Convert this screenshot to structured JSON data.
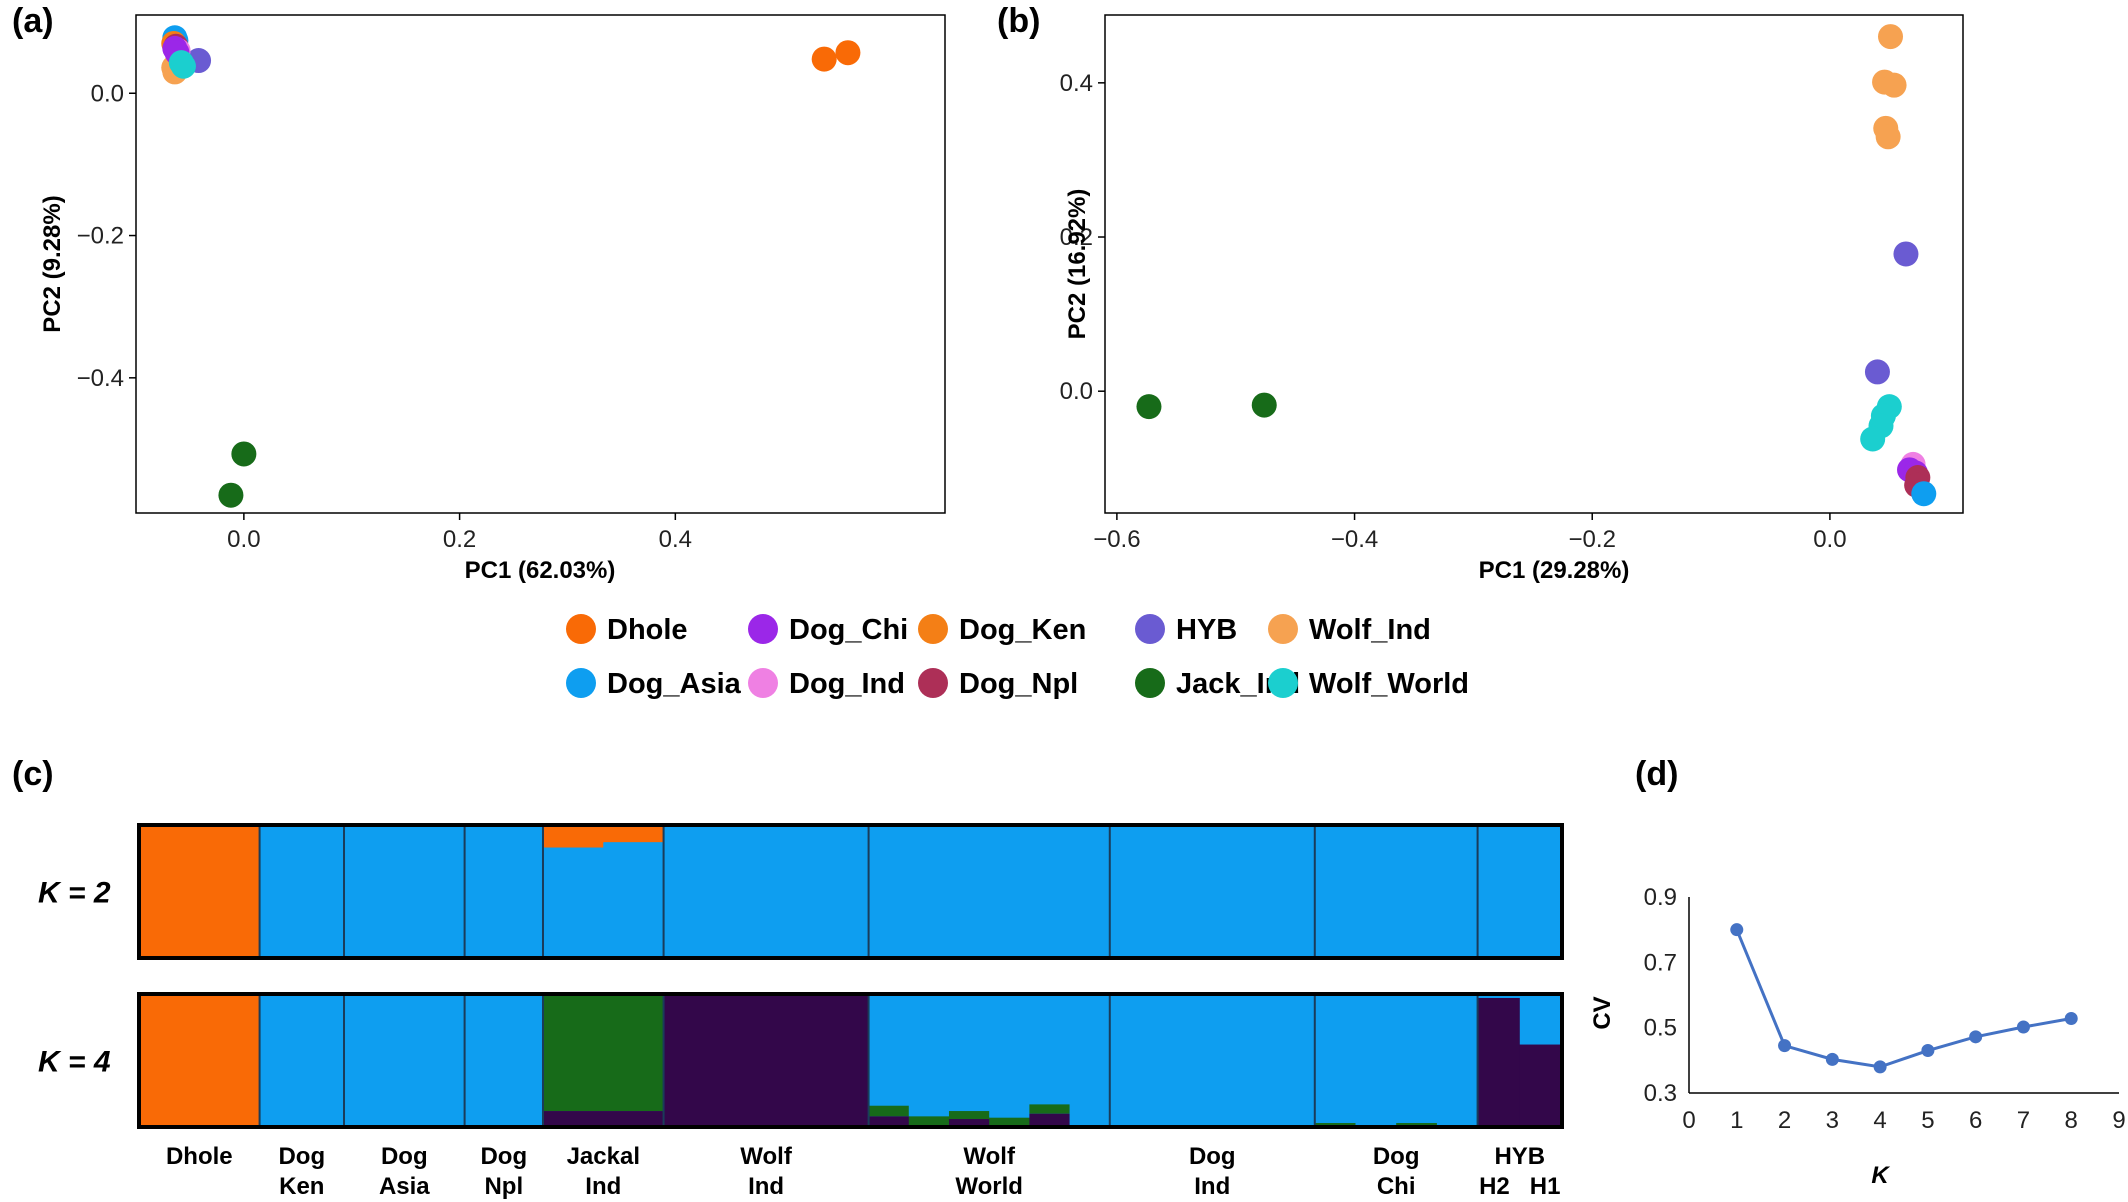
{
  "panels": {
    "a": "(a)",
    "b": "(b)",
    "c": "(c)",
    "d": "(d)"
  },
  "colors": {
    "Dhole": "#f96a06",
    "Dog_Asia": "#0e9ef0",
    "Dog_Chi": "#9b27e8",
    "Dog_Ind": "#ef80e3",
    "Dog_Ken": "#f47f16",
    "Dog_Npl": "#ad2f57",
    "HYB": "#6a5bd2",
    "Jack_Ind": "#176b19",
    "Wolf_Ind": "#f6a251",
    "Wolf_World": "#1bcfcf"
  },
  "legend": {
    "row1": [
      "Dhole",
      "Dog_Chi",
      "Dog_Ken",
      "HYB",
      "Wolf_Ind"
    ],
    "row2": [
      "Dog_Asia",
      "Dog_Ind",
      "Dog_Npl",
      "Jack_Ind",
      "Wolf_World"
    ]
  },
  "chart_data": [
    {
      "id": "a",
      "type": "scatter",
      "xlabel": "PC1 (62.03%)",
      "ylabel": "PC2 (9.28%)",
      "xlim": [
        -0.1,
        0.65
      ],
      "ylim": [
        -0.59,
        0.11
      ],
      "xticks": [
        0.0,
        0.2,
        0.4
      ],
      "xtick_labels": [
        "0.0",
        "0.2",
        "0.4"
      ],
      "yticks": [
        0.0,
        -0.2,
        -0.4
      ],
      "ytick_labels": [
        "0.0",
        "−0.2",
        "−0.4"
      ],
      "points": [
        {
          "g": "Dhole",
          "x": 0.538,
          "y": 0.048
        },
        {
          "g": "Dhole",
          "x": 0.56,
          "y": 0.057
        },
        {
          "g": "Jack_Ind",
          "x": 0.0,
          "y": -0.507
        },
        {
          "g": "Jack_Ind",
          "x": -0.012,
          "y": -0.565
        },
        {
          "g": "Dog_Asia",
          "x": -0.064,
          "y": 0.078
        },
        {
          "g": "Dog_Asia",
          "x": -0.063,
          "y": 0.074
        },
        {
          "g": "Dog_Ken",
          "x": -0.065,
          "y": 0.07
        },
        {
          "g": "Wolf_Ind",
          "x": -0.064,
          "y": 0.03
        },
        {
          "g": "Wolf_Ind",
          "x": -0.065,
          "y": 0.036
        },
        {
          "g": "HYB",
          "x": -0.042,
          "y": 0.046
        },
        {
          "g": "Dog_Npl",
          "x": -0.063,
          "y": 0.066
        },
        {
          "g": "Dog_Ind",
          "x": -0.061,
          "y": 0.06
        },
        {
          "g": "Dog_Chi",
          "x": -0.064,
          "y": 0.063
        },
        {
          "g": "Dog_Chi",
          "x": -0.062,
          "y": 0.057
        },
        {
          "g": "Wolf_World",
          "x": -0.058,
          "y": 0.043
        },
        {
          "g": "Wolf_World",
          "x": -0.056,
          "y": 0.038
        }
      ]
    },
    {
      "id": "b",
      "type": "scatter",
      "xlabel": "PC1 (29.28%)",
      "ylabel": "PC2 (16.92%)",
      "xlim": [
        -0.61,
        0.112
      ],
      "ylim": [
        -0.158,
        0.488
      ],
      "xticks": [
        -0.6,
        -0.4,
        -0.2,
        0.0
      ],
      "xtick_labels": [
        "−0.6",
        "−0.4",
        "−0.2",
        "0.0"
      ],
      "yticks": [
        0.4,
        0.2,
        0.0
      ],
      "ytick_labels": [
        "0.4",
        "0.2",
        "0.0"
      ],
      "points": [
        {
          "g": "Jack_Ind",
          "x": -0.573,
          "y": -0.02
        },
        {
          "g": "Jack_Ind",
          "x": -0.476,
          "y": -0.018
        },
        {
          "g": "Wolf_Ind",
          "x": 0.051,
          "y": 0.46
        },
        {
          "g": "Wolf_Ind",
          "x": 0.046,
          "y": 0.401
        },
        {
          "g": "Wolf_Ind",
          "x": 0.054,
          "y": 0.397
        },
        {
          "g": "Wolf_Ind",
          "x": 0.047,
          "y": 0.341
        },
        {
          "g": "Wolf_Ind",
          "x": 0.049,
          "y": 0.33
        },
        {
          "g": "HYB",
          "x": 0.064,
          "y": 0.178
        },
        {
          "g": "HYB",
          "x": 0.04,
          "y": 0.025
        },
        {
          "g": "Wolf_World",
          "x": 0.05,
          "y": -0.02
        },
        {
          "g": "Wolf_World",
          "x": 0.045,
          "y": -0.032
        },
        {
          "g": "Wolf_World",
          "x": 0.043,
          "y": -0.045
        },
        {
          "g": "Wolf_World",
          "x": 0.036,
          "y": -0.062
        },
        {
          "g": "Dog_Ind",
          "x": 0.07,
          "y": -0.095
        },
        {
          "g": "Dog_Chi",
          "x": 0.067,
          "y": -0.102
        },
        {
          "g": "Dog_Chi",
          "x": 0.072,
          "y": -0.106
        },
        {
          "g": "Dog_Npl",
          "x": 0.074,
          "y": -0.112
        },
        {
          "g": "Dog_Npl",
          "x": 0.073,
          "y": -0.122
        },
        {
          "g": "Dog_Asia",
          "x": 0.079,
          "y": -0.133
        }
      ]
    },
    {
      "id": "c",
      "type": "bar",
      "stacked": true,
      "groups": [
        {
          "name": "Dhole",
          "line1": "Dhole",
          "line2": ""
        },
        {
          "name": "Dog Ken",
          "line1": "Dog",
          "line2": "Ken"
        },
        {
          "name": "Dog Asia",
          "line1": "Dog",
          "line2": "Asia"
        },
        {
          "name": "Dog Npl",
          "line1": "Dog",
          "line2": "Npl"
        },
        {
          "name": "Jackal Ind",
          "line1": "Jackal",
          "line2": "Ind"
        },
        {
          "name": "Wolf Ind",
          "line1": "Wolf",
          "line2": "Ind"
        },
        {
          "name": "Wolf World",
          "line1": "Wolf",
          "line2": "World"
        },
        {
          "name": "Dog Ind",
          "line1": "Dog",
          "line2": "Ind"
        },
        {
          "name": "Dog Chi",
          "line1": "Dog",
          "line2": "Chi"
        },
        {
          "name": "HYB",
          "line1": "HYB",
          "line2": "H2   H1"
        }
      ],
      "group_widths": [
        2,
        1.4,
        2,
        1.3,
        2,
        3.4,
        4,
        3.4,
        2.7,
        1.4
      ],
      "rows": [
        {
          "label": "K = 2",
          "colors": [
            "#f96a06",
            "#0e9ef0"
          ],
          "groups": [
            [
              [
                1.0,
                0.0
              ]
            ],
            [
              [
                0.0,
                1.0
              ]
            ],
            [
              [
                0.0,
                1.0
              ]
            ],
            [
              [
                0.0,
                1.0
              ]
            ],
            [
              [
                0.17,
                0.83
              ],
              [
                0.13,
                0.87
              ]
            ],
            [
              [
                0.0,
                1.0
              ]
            ],
            [
              [
                0.0,
                1.0
              ]
            ],
            [
              [
                0.0,
                1.0
              ]
            ],
            [
              [
                0.0,
                1.0
              ]
            ],
            [
              [
                0.0,
                1.0
              ]
            ]
          ]
        },
        {
          "label": "K = 4",
          "colors": [
            "#f96a06",
            "#0e9ef0",
            "#176b19",
            "#33074a"
          ],
          "groups": [
            [
              [
                1.0,
                0.0,
                0.0,
                0.0
              ]
            ],
            [
              [
                0.0,
                1.0,
                0.0,
                0.0
              ]
            ],
            [
              [
                0.0,
                0.99,
                0.01,
                0.0
              ]
            ],
            [
              [
                0.0,
                1.0,
                0.0,
                0.0
              ]
            ],
            [
              [
                0.0,
                0.0,
                0.88,
                0.12
              ]
            ],
            [
              [
                0.0,
                0.0,
                0.0,
                1.0
              ]
            ],
            [
              [
                0.0,
                0.84,
                0.08,
                0.08
              ],
              [
                0.0,
                0.92,
                0.08,
                0.0
              ],
              [
                0.0,
                0.88,
                0.06,
                0.06
              ],
              [
                0.0,
                0.93,
                0.07,
                0.0
              ],
              [
                0.0,
                0.83,
                0.07,
                0.1
              ],
              [
                0.0,
                0.99,
                0.01,
                0.0
              ]
            ],
            [
              [
                0.0,
                0.99,
                0.01,
                0.0
              ],
              [
                0.0,
                1.0,
                0.0,
                0.0
              ]
            ],
            [
              [
                0.0,
                0.97,
                0.03,
                0.0
              ],
              [
                0.0,
                0.99,
                0.01,
                0.0
              ],
              [
                0.0,
                0.97,
                0.03,
                0.0
              ],
              [
                0.0,
                0.99,
                0.01,
                0.0
              ]
            ],
            [
              [
                0.0,
                0.03,
                0.0,
                0.97
              ],
              [
                0.0,
                0.38,
                0.0,
                0.62
              ]
            ]
          ]
        }
      ]
    },
    {
      "id": "d",
      "type": "line",
      "xlabel": "K",
      "ylabel": "CV",
      "xlim": [
        0,
        9
      ],
      "ylim": [
        0.3,
        0.9
      ],
      "xticks": [
        0,
        1,
        2,
        3,
        4,
        5,
        6,
        7,
        8,
        9
      ],
      "xtick_labels": [
        "0",
        "1",
        "2",
        "3",
        "4",
        "5",
        "6",
        "7",
        "8",
        "9"
      ],
      "yticks": [
        0.3,
        0.5,
        0.7,
        0.9
      ],
      "ytick_labels": [
        "0.3",
        "0.5",
        "0.7",
        "0.9"
      ],
      "x": [
        1,
        2,
        3,
        4,
        5,
        6,
        7,
        8
      ],
      "y": [
        0.8,
        0.445,
        0.403,
        0.38,
        0.43,
        0.472,
        0.502,
        0.528
      ],
      "color": "#4472c4"
    }
  ]
}
